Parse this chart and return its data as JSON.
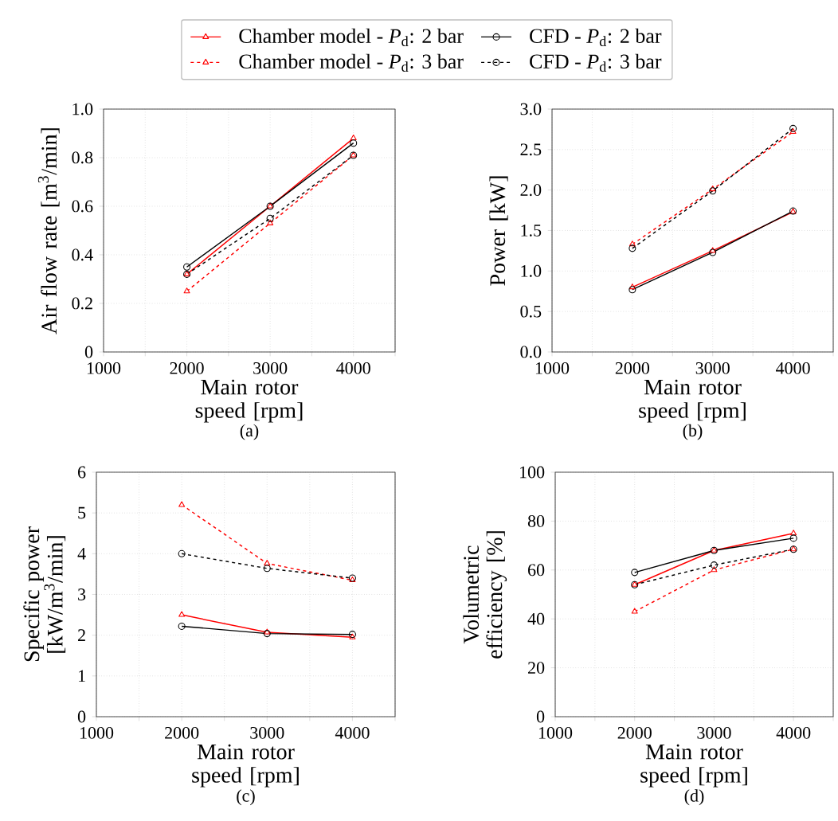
{
  "chart_data": [
    {
      "type": "line",
      "xlabel": "Main rotor speed [rpm]",
      "ylabel": "Air flow rate [m$^{3}$/min]",
      "annotations": [
        "(a)"
      ],
      "xlim": [
        1000,
        4500
      ],
      "xticks": [
        1000,
        {
          "value": 1500,
          "label": null
        },
        2000,
        {
          "value": 2500,
          "label": null
        },
        3000,
        {
          "value": 3500,
          "label": null
        },
        4000,
        {
          "value": 4500,
          "label": null
        }
      ],
      "ylim": [
        0,
        1.0
      ],
      "yticks": [
        0,
        0.2,
        0.4,
        0.6,
        0.8,
        {
          "value": 1.0,
          "label": "1.0"
        }
      ],
      "grid": true,
      "legend": "top",
      "x": [
        2000,
        3000,
        4000
      ],
      "series": [
        {
          "name": "Chamber model - *P*$_{d}$: 2 bar",
          "color": "#ff0000",
          "marker": "triangle",
          "line_style": "solid",
          "values": [
            0.32,
            0.6,
            0.88
          ]
        },
        {
          "name": "Chamber model - *P*$_{d}$: 3 bar",
          "color": "#ff0000",
          "marker": "triangle",
          "line_style": "dashed",
          "values": [
            0.25,
            0.53,
            0.81
          ]
        },
        {
          "name": "CFD - *P*$_{d}$: 2 bar",
          "color": "#000000",
          "marker": "circle",
          "line_style": "solid",
          "values": [
            0.35,
            0.6,
            0.86
          ]
        },
        {
          "name": "CFD - *P*$_{d}$: 3 bar",
          "color": "#000000",
          "marker": "circle",
          "line_style": "dashed",
          "values": [
            0.32,
            0.55,
            0.81
          ]
        }
      ]
    },
    {
      "type": "line",
      "xlabel": "Main rotor speed [rpm]",
      "ylabel": "Power [kW]",
      "annotations": [
        "(b)"
      ],
      "xlim": [
        1000,
        4500
      ],
      "xticks": [
        1000,
        {
          "value": 1500,
          "label": null
        },
        2000,
        {
          "value": 2500,
          "label": null
        },
        3000,
        {
          "value": 3500,
          "label": null
        },
        4000,
        {
          "value": 4500,
          "label": null
        }
      ],
      "ylim": [
        0,
        3.0
      ],
      "yticks": [
        {
          "value": 0,
          "label": "0.0"
        },
        0.5,
        {
          "value": 1.0,
          "label": "1.0"
        },
        1.5,
        {
          "value": 2.0,
          "label": "2.0"
        },
        2.5,
        {
          "value": 3.0,
          "label": "3.0"
        }
      ],
      "grid": true,
      "x": [
        2000,
        3000,
        4000
      ],
      "series": [
        {
          "color": "#ff0000",
          "marker": "triangle",
          "line_style": "solid",
          "values": [
            0.8,
            1.25,
            1.73
          ]
        },
        {
          "color": "#ff0000",
          "marker": "triangle",
          "line_style": "dashed",
          "values": [
            1.33,
            2.01,
            2.72
          ]
        },
        {
          "color": "#000000",
          "marker": "circle",
          "line_style": "solid",
          "values": [
            0.77,
            1.23,
            1.74
          ]
        },
        {
          "color": "#000000",
          "marker": "circle",
          "line_style": "dashed",
          "values": [
            1.28,
            1.99,
            2.76
          ]
        }
      ]
    },
    {
      "type": "line",
      "xlabel": "Main rotor speed [rpm]",
      "ylabel": "Specific power [kW/m$^{3}$/min]",
      "annotations": [
        "(c)"
      ],
      "xlim": [
        1000,
        4500
      ],
      "xticks": [
        1000,
        {
          "value": 1500,
          "label": null
        },
        2000,
        {
          "value": 2500,
          "label": null
        },
        3000,
        {
          "value": 3500,
          "label": null
        },
        4000,
        {
          "value": 4500,
          "label": null
        }
      ],
      "ylim": [
        0,
        6
      ],
      "yticks": [
        0,
        1,
        2,
        3,
        4,
        5,
        6
      ],
      "grid": true,
      "x": [
        2000,
        3000,
        4000
      ],
      "series": [
        {
          "color": "#ff0000",
          "marker": "triangle",
          "line_style": "solid",
          "values": [
            2.5,
            2.07,
            1.95
          ]
        },
        {
          "color": "#ff0000",
          "marker": "triangle",
          "line_style": "dashed",
          "values": [
            5.2,
            3.76,
            3.35
          ]
        },
        {
          "color": "#000000",
          "marker": "circle",
          "line_style": "solid",
          "values": [
            2.22,
            2.04,
            2.02
          ]
        },
        {
          "color": "#000000",
          "marker": "circle",
          "line_style": "dashed",
          "values": [
            4.0,
            3.64,
            3.4
          ]
        }
      ]
    },
    {
      "type": "line",
      "xlabel": "Main rotor speed [rpm]",
      "ylabel": "Volumetric efficiency [%]",
      "annotations": [
        "(d)"
      ],
      "xlim": [
        1000,
        4500
      ],
      "xticks": [
        1000,
        {
          "value": 1500,
          "label": null
        },
        2000,
        {
          "value": 2500,
          "label": null
        },
        3000,
        {
          "value": 3500,
          "label": null
        },
        4000,
        {
          "value": 4500,
          "label": null
        }
      ],
      "ylim": [
        0,
        100
      ],
      "yticks": [
        0,
        20,
        40,
        60,
        80,
        100
      ],
      "grid": true,
      "x": [
        2000,
        3000,
        4000
      ],
      "series": [
        {
          "color": "#ff0000",
          "marker": "triangle",
          "line_style": "solid",
          "values": [
            54,
            68,
            75
          ]
        },
        {
          "color": "#ff0000",
          "marker": "triangle",
          "line_style": "dashed",
          "values": [
            43,
            60,
            68.5
          ]
        },
        {
          "color": "#000000",
          "marker": "circle",
          "line_style": "solid",
          "values": [
            59,
            68,
            73
          ]
        },
        {
          "color": "#000000",
          "marker": "circle",
          "line_style": "dashed",
          "values": [
            54,
            62,
            68.5
          ]
        }
      ]
    }
  ]
}
